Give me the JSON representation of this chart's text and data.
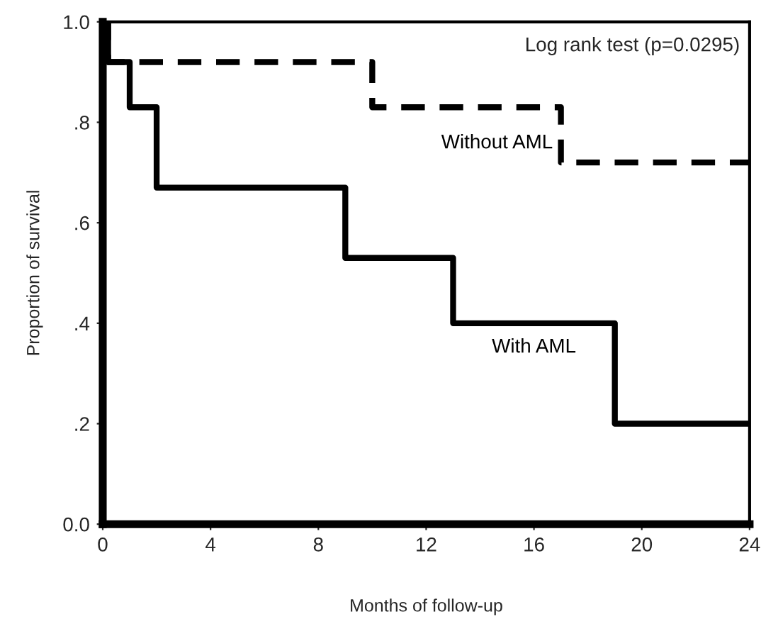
{
  "chart_data": {
    "type": "step",
    "xlabel": "Months of follow-up",
    "ylabel": "Proportion of survival",
    "xlim": [
      0,
      24
    ],
    "xticks": [
      0,
      4,
      8,
      12,
      16,
      20,
      24
    ],
    "ylim": [
      0,
      1
    ],
    "yticks": [
      {
        "value": 0,
        "label": "0.0"
      },
      {
        "value": 0.2,
        "label": ".2"
      },
      {
        "value": 0.4,
        "label": ".4"
      },
      {
        "value": 0.6,
        "label": ".6"
      },
      {
        "value": 0.8,
        "label": ".8"
      },
      {
        "value": 1,
        "label": "1.0"
      }
    ],
    "series": [
      {
        "name": "Without AML",
        "color": "#000000",
        "line_style": "dashed",
        "x": [
          0,
          0.2,
          10,
          17,
          24
        ],
        "values": [
          1,
          0.92,
          0.83,
          0.72,
          0.72
        ]
      },
      {
        "name": "With AML",
        "color": "#000000",
        "line_style": "solid",
        "x": [
          0,
          0.2,
          1,
          2,
          9,
          13,
          19,
          24
        ],
        "values": [
          1,
          0.92,
          0.83,
          0.67,
          0.53,
          0.4,
          0.2,
          0.2
        ]
      }
    ],
    "annotations": [
      "Log rank test (p=0.0295)"
    ],
    "grid": false,
    "legend": false
  }
}
